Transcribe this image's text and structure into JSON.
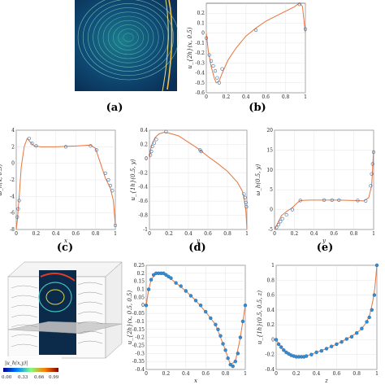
{
  "captions": {
    "a": "(a)",
    "b": "(b)",
    "c": "(c)",
    "d": "(d)",
    "e": "(e)"
  },
  "colorbar": {
    "label": "|u_h(x,y)|",
    "ticks": [
      "0.00",
      "0.33",
      "0.66",
      "0.99"
    ]
  },
  "colors": {
    "line": "#e8743b",
    "marker": "#3a6ea5",
    "marker_fill_h": "#2f8fd6",
    "grid": "#dddddd",
    "stream_bg": "#0b3a5e",
    "stream_line": "#9fe0c8"
  },
  "chart_data": [
    {
      "id": "b",
      "type": "line",
      "ylabel": "u_{2h}(x, 0.5)",
      "xlabel": "x",
      "xlim": [
        0,
        1
      ],
      "ylim": [
        -0.6,
        0.3
      ],
      "xticks": [
        "0",
        "0.2",
        "0.4",
        "0.6",
        "0.8",
        "1"
      ],
      "yticks": [
        "0.2",
        "0.1",
        "0",
        "-0.1",
        "-0.2",
        "-0.3",
        "-0.4",
        "-0.5",
        "-0.6"
      ],
      "series": [
        {
          "kind": "line",
          "x": [
            0,
            0.02,
            0.05,
            0.08,
            0.1,
            0.13,
            0.17,
            0.22,
            0.3,
            0.4,
            0.5,
            0.6,
            0.7,
            0.8,
            0.88,
            0.94,
            0.97,
            1.0
          ],
          "y": [
            0.0,
            -0.18,
            -0.34,
            -0.45,
            -0.5,
            -0.48,
            -0.38,
            -0.27,
            -0.15,
            -0.03,
            0.05,
            0.12,
            0.17,
            0.22,
            0.26,
            0.3,
            0.27,
            0.0
          ]
        },
        {
          "kind": "markers",
          "x": [
            0.0,
            0.03,
            0.05,
            0.07,
            0.09,
            0.11,
            0.13,
            0.16,
            0.5,
            0.94,
            1.0
          ],
          "y": [
            -0.05,
            -0.22,
            -0.28,
            -0.33,
            -0.38,
            -0.45,
            -0.5,
            -0.36,
            0.03,
            0.29,
            0.04
          ]
        }
      ]
    },
    {
      "id": "c",
      "type": "line",
      "ylabel": "ω_h(x, 0.5)",
      "xlabel": "x",
      "xlim": [
        0,
        1
      ],
      "ylim": [
        -8,
        4
      ],
      "xticks": [
        "0",
        "0.2",
        "0.4",
        "0.6",
        "0.8",
        "1"
      ],
      "yticks": [
        "4",
        "2",
        "0",
        "-2",
        "-4",
        "-6",
        "-8"
      ],
      "series": [
        {
          "kind": "line",
          "x": [
            0,
            0.01,
            0.03,
            0.05,
            0.08,
            0.11,
            0.14,
            0.18,
            0.25,
            0.4,
            0.6,
            0.75,
            0.8,
            0.85,
            0.9,
            0.95,
            0.98,
            1.0
          ],
          "y": [
            -8,
            -7,
            -4,
            -0.5,
            2.0,
            3.0,
            2.6,
            2.1,
            2.0,
            2.0,
            2.1,
            2.2,
            1.8,
            0.0,
            -1.8,
            -3.0,
            -4.5,
            -7.5
          ]
        },
        {
          "kind": "markers",
          "x": [
            0.01,
            0.02,
            0.03,
            0.13,
            0.16,
            0.2,
            0.5,
            0.75,
            0.81,
            0.9,
            0.93,
            0.95,
            0.97,
            1.0
          ],
          "y": [
            -6.5,
            -5.5,
            -4.5,
            3.0,
            2.4,
            2.1,
            2.0,
            2.1,
            1.6,
            -1.2,
            -2.0,
            -2.7,
            -3.3,
            -7.5
          ]
        }
      ]
    },
    {
      "id": "d",
      "type": "line",
      "ylabel": "u_{1h}(0.5, y)",
      "xlabel": "y",
      "xlim": [
        0,
        1
      ],
      "ylim": [
        -1,
        0.4
      ],
      "xticks": [
        "0",
        "0.2",
        "0.4",
        "0.6",
        "0.8",
        "1"
      ],
      "yticks": [
        "0.4",
        "0.2",
        "0",
        "-0.2",
        "-0.4",
        "-0.6",
        "-0.8",
        "-1"
      ],
      "series": [
        {
          "kind": "line",
          "x": [
            0,
            0.01,
            0.03,
            0.06,
            0.1,
            0.15,
            0.2,
            0.3,
            0.4,
            0.5,
            0.6,
            0.7,
            0.8,
            0.9,
            0.95,
            0.97,
            0.99,
            1.0
          ],
          "y": [
            0.0,
            0.12,
            0.22,
            0.3,
            0.35,
            0.37,
            0.36,
            0.32,
            0.23,
            0.14,
            0.03,
            -0.07,
            -0.18,
            -0.33,
            -0.45,
            -0.55,
            -0.75,
            -1.0
          ]
        },
        {
          "kind": "markers",
          "x": [
            0.01,
            0.02,
            0.03,
            0.05,
            0.07,
            0.17,
            0.52,
            0.53,
            0.97,
            0.98,
            0.99,
            0.995
          ],
          "y": [
            0.05,
            0.1,
            0.17,
            0.22,
            0.27,
            0.38,
            0.12,
            0.1,
            -0.5,
            -0.55,
            -0.62,
            -0.68
          ]
        }
      ]
    },
    {
      "id": "e",
      "type": "line",
      "ylabel": "ω_h(0.5, y)",
      "xlabel": "y",
      "xlim": [
        0,
        1
      ],
      "ylim": [
        -5,
        20
      ],
      "xticks": [
        "0",
        "0.2",
        "0.4",
        "0.6",
        "0.8",
        "1"
      ],
      "yticks": [
        "20",
        "15",
        "10",
        "5",
        "0",
        "-5"
      ],
      "series": [
        {
          "kind": "line",
          "x": [
            0,
            0.03,
            0.07,
            0.12,
            0.18,
            0.22,
            0.26,
            0.35,
            0.5,
            0.65,
            0.8,
            0.9,
            0.95,
            0.98,
            1.0
          ],
          "y": [
            -5,
            -3.5,
            -1.5,
            -0.5,
            0.5,
            1.5,
            2.3,
            2.4,
            2.4,
            2.4,
            2.3,
            2.2,
            3.0,
            6.0,
            15.0
          ]
        },
        {
          "kind": "markers",
          "x": [
            0.02,
            0.04,
            0.06,
            0.08,
            0.12,
            0.18,
            0.26,
            0.5,
            0.58,
            0.65,
            0.84,
            0.92,
            0.97,
            0.98,
            0.99,
            1.0
          ],
          "y": [
            -4.5,
            -3.8,
            -3.0,
            -2.3,
            -1.3,
            0.0,
            2.3,
            2.4,
            2.4,
            2.4,
            2.3,
            2.2,
            6.0,
            9.0,
            11.5,
            14.5
          ]
        }
      ]
    },
    {
      "id": "g",
      "type": "line",
      "ylabel": "u_{2h}(x, 0.5, 0.5)",
      "xlabel": "x",
      "xlim": [
        0,
        1
      ],
      "ylim": [
        -0.4,
        0.25
      ],
      "xticks": [
        "0",
        "0.2",
        "0.4",
        "0.6",
        "0.8",
        "1"
      ],
      "yticks": [
        "0.25",
        "0.2",
        "0.15",
        "0.1",
        "0.05",
        "0",
        "-0.05",
        "-0.1",
        "-0.15",
        "-0.2",
        "-0.25",
        "-0.3",
        "-0.35",
        "-0.4"
      ],
      "series": [
        {
          "kind": "line",
          "x": [
            0,
            0.025,
            0.05,
            0.1,
            0.15,
            0.2,
            0.3,
            0.4,
            0.5,
            0.6,
            0.7,
            0.8,
            0.85,
            0.9,
            0.95,
            1.0
          ],
          "y": [
            0.0,
            0.1,
            0.16,
            0.2,
            0.2,
            0.19,
            0.14,
            0.09,
            0.03,
            -0.04,
            -0.12,
            -0.28,
            -0.37,
            -0.35,
            -0.2,
            0.0
          ]
        },
        {
          "kind": "markers",
          "x": [
            0,
            0.025,
            0.05,
            0.075,
            0.1,
            0.125,
            0.15,
            0.175,
            0.2,
            0.225,
            0.25,
            0.3,
            0.35,
            0.4,
            0.45,
            0.5,
            0.55,
            0.6,
            0.65,
            0.7,
            0.725,
            0.75,
            0.775,
            0.8,
            0.825,
            0.85,
            0.875,
            0.9,
            0.925,
            0.95,
            0.975,
            1.0
          ],
          "y": [
            0.0,
            0.1,
            0.16,
            0.19,
            0.2,
            0.2,
            0.2,
            0.2,
            0.19,
            0.18,
            0.17,
            0.14,
            0.12,
            0.09,
            0.06,
            0.03,
            0.0,
            -0.04,
            -0.08,
            -0.12,
            -0.15,
            -0.19,
            -0.24,
            -0.28,
            -0.33,
            -0.37,
            -0.38,
            -0.35,
            -0.3,
            -0.2,
            -0.1,
            0.0
          ]
        }
      ]
    },
    {
      "id": "h",
      "type": "line",
      "ylabel": "u_{1h}(0.5, 0.5, z)",
      "xlabel": "z",
      "xlim": [
        0,
        1
      ],
      "ylim": [
        -0.4,
        1
      ],
      "xticks": [
        "0",
        "0.2",
        "0.4",
        "0.6",
        "0.8",
        "1"
      ],
      "yticks": [
        "1",
        "0.8",
        "0.6",
        "0.4",
        "0.2",
        "0",
        "-0.2",
        "-0.4"
      ],
      "series": [
        {
          "kind": "line",
          "x": [
            0,
            0.05,
            0.1,
            0.15,
            0.2,
            0.25,
            0.3,
            0.4,
            0.5,
            0.6,
            0.7,
            0.8,
            0.85,
            0.9,
            0.93,
            0.96,
            0.98,
            1.0
          ],
          "y": [
            0.0,
            -0.1,
            -0.17,
            -0.21,
            -0.23,
            -0.23,
            -0.22,
            -0.17,
            -0.12,
            -0.06,
            0.01,
            0.09,
            0.15,
            0.24,
            0.34,
            0.52,
            0.7,
            1.0
          ]
        },
        {
          "kind": "markers",
          "x": [
            0,
            0.025,
            0.05,
            0.075,
            0.1,
            0.125,
            0.15,
            0.175,
            0.2,
            0.225,
            0.25,
            0.275,
            0.3,
            0.35,
            0.4,
            0.45,
            0.5,
            0.55,
            0.6,
            0.65,
            0.7,
            0.75,
            0.8,
            0.85,
            0.9,
            0.925,
            0.95,
            0.975,
            1.0
          ],
          "y": [
            0.0,
            -0.06,
            -0.1,
            -0.14,
            -0.17,
            -0.19,
            -0.21,
            -0.22,
            -0.23,
            -0.23,
            -0.23,
            -0.23,
            -0.22,
            -0.2,
            -0.17,
            -0.15,
            -0.12,
            -0.09,
            -0.06,
            -0.03,
            0.01,
            0.04,
            0.09,
            0.15,
            0.24,
            0.3,
            0.4,
            0.6,
            1.0
          ]
        }
      ]
    }
  ]
}
